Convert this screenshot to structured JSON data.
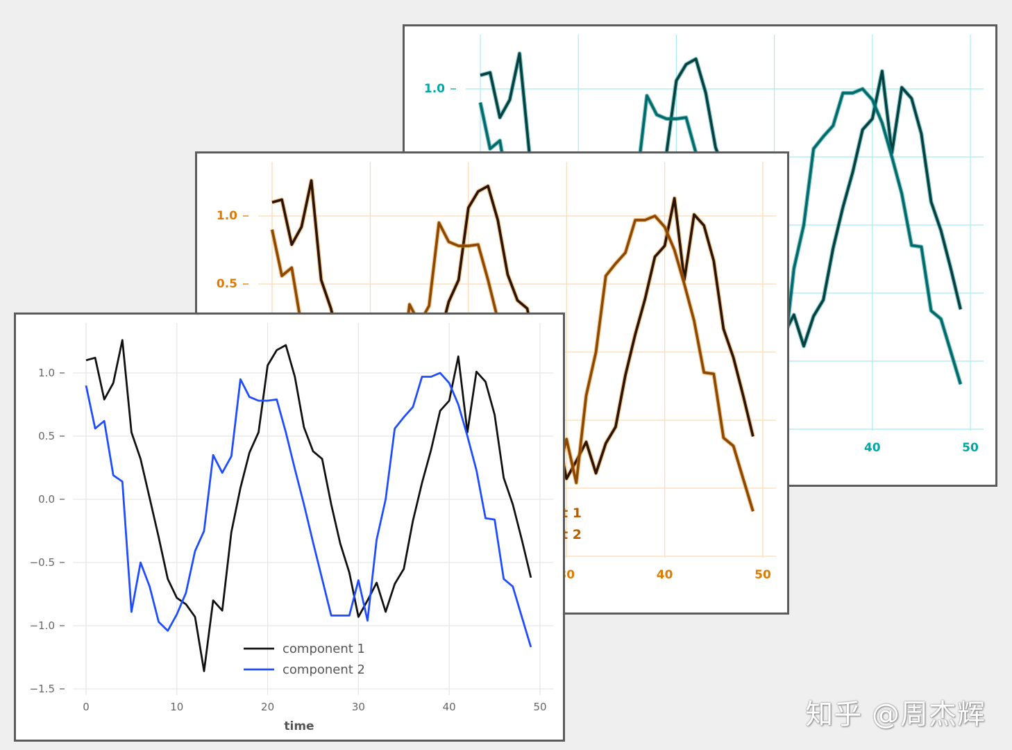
{
  "chart_data": [
    {
      "type": "line",
      "layer": "back",
      "palette": {
        "grid": "#a9ecec",
        "tick_text": "#00a7a7",
        "series": [
          "#063f3f",
          "#006a6a"
        ],
        "glow": [
          "#0a8a8a",
          "#0a8a8a"
        ]
      },
      "x_grid": [
        0,
        10,
        20,
        30,
        40,
        50
      ],
      "y_grid": [
        -1.5,
        -1.0,
        -0.5,
        0.0,
        0.5,
        1.0
      ],
      "x_tick_labels": [
        "40",
        "50"
      ],
      "y_tick_labels": [
        "1.0"
      ],
      "xlim": [
        0,
        50
      ],
      "ylim": [
        -1.5,
        1.3
      ],
      "grid": true,
      "x": [
        0,
        1,
        2,
        3,
        4,
        5,
        6,
        7,
        8,
        9,
        10,
        11,
        12,
        13,
        14,
        15,
        16,
        17,
        18,
        19,
        20,
        21,
        22,
        23,
        24,
        25,
        26,
        27,
        28,
        29,
        30,
        31,
        32,
        33,
        34,
        35,
        36,
        37,
        38,
        39,
        40,
        41,
        42,
        43,
        44,
        45,
        46,
        47,
        48,
        49
      ],
      "series": [
        {
          "values": [
            1.1,
            1.12,
            0.79,
            0.92,
            1.26,
            0.53,
            0.32,
            0.01,
            -0.3,
            -0.63,
            -0.78,
            -0.83,
            -0.93,
            -1.36,
            -0.8,
            -0.88,
            -0.26,
            0.09,
            0.37,
            0.53,
            1.06,
            1.18,
            1.22,
            0.97,
            0.57,
            0.38,
            0.32,
            -0.04,
            -0.35,
            -0.58,
            -0.93,
            -0.8,
            -0.66,
            -0.89,
            -0.67,
            -0.55,
            -0.17,
            0.13,
            0.39,
            0.7,
            0.78,
            1.13,
            0.53,
            1.01,
            0.93,
            0.67,
            0.17,
            -0.04,
            -0.32,
            -0.62
          ]
        },
        {
          "values": [
            0.9,
            0.56,
            0.62,
            0.19,
            0.14,
            -0.89,
            -0.5,
            -0.69,
            -0.97,
            -1.04,
            -0.91,
            -0.74,
            -0.41,
            -0.25,
            0.35,
            0.21,
            0.34,
            0.95,
            0.81,
            0.78,
            0.78,
            0.79,
            0.53,
            0.24,
            -0.04,
            -0.34,
            -0.63,
            -0.92,
            -0.92,
            -0.92,
            -0.64,
            -0.96,
            -0.32,
            0.0,
            0.56,
            0.65,
            0.73,
            0.97,
            0.97,
            1.0,
            0.92,
            0.75,
            0.5,
            0.23,
            -0.15,
            -0.16,
            -0.63,
            -0.69,
            -0.93,
            -1.17
          ]
        }
      ]
    },
    {
      "type": "line",
      "layer": "middle",
      "palette": {
        "grid": "#ffd9b0",
        "tick_text": "#e07a00",
        "series": [
          "#2a1300",
          "#8a4800"
        ],
        "glow": [
          "#e08a20",
          "#e08a20"
        ],
        "legend_text": "#b35f00"
      },
      "x_grid": [
        0,
        10,
        20,
        30,
        40,
        50
      ],
      "y_grid": [
        -1.5,
        -1.0,
        -0.5,
        0.0,
        0.5,
        1.0
      ],
      "x_tick_labels": [
        "30",
        "40",
        "50"
      ],
      "y_tick_labels": [
        "1.0",
        "0.5"
      ],
      "xlim": [
        0,
        50
      ],
      "ylim": [
        -1.5,
        1.3
      ],
      "grid": true,
      "legend": {
        "placement": "lower-center",
        "entries": [
          "component 1",
          "component 2"
        ]
      },
      "x": [
        0,
        1,
        2,
        3,
        4,
        5,
        6,
        7,
        8,
        9,
        10,
        11,
        12,
        13,
        14,
        15,
        16,
        17,
        18,
        19,
        20,
        21,
        22,
        23,
        24,
        25,
        26,
        27,
        28,
        29,
        30,
        31,
        32,
        33,
        34,
        35,
        36,
        37,
        38,
        39,
        40,
        41,
        42,
        43,
        44,
        45,
        46,
        47,
        48,
        49
      ],
      "series": [
        {
          "values": [
            1.1,
            1.12,
            0.79,
            0.92,
            1.26,
            0.53,
            0.32,
            0.01,
            -0.3,
            -0.63,
            -0.78,
            -0.83,
            -0.93,
            -1.36,
            -0.8,
            -0.88,
            -0.26,
            0.09,
            0.37,
            0.53,
            1.06,
            1.18,
            1.22,
            0.97,
            0.57,
            0.38,
            0.32,
            -0.04,
            -0.35,
            -0.58,
            -0.93,
            -0.8,
            -0.66,
            -0.89,
            -0.67,
            -0.55,
            -0.17,
            0.13,
            0.39,
            0.7,
            0.78,
            1.13,
            0.53,
            1.01,
            0.93,
            0.67,
            0.17,
            -0.04,
            -0.32,
            -0.62
          ]
        },
        {
          "values": [
            0.9,
            0.56,
            0.62,
            0.19,
            0.14,
            -0.89,
            -0.5,
            -0.69,
            -0.97,
            -1.04,
            -0.91,
            -0.74,
            -0.41,
            -0.25,
            0.35,
            0.21,
            0.34,
            0.95,
            0.81,
            0.78,
            0.78,
            0.79,
            0.53,
            0.24,
            -0.04,
            -0.34,
            -0.63,
            -0.92,
            -0.92,
            -0.92,
            -0.64,
            -0.96,
            -0.32,
            0.0,
            0.56,
            0.65,
            0.73,
            0.97,
            0.97,
            1.0,
            0.92,
            0.75,
            0.5,
            0.23,
            -0.15,
            -0.16,
            -0.63,
            -0.69,
            -0.93,
            -1.17
          ]
        }
      ]
    },
    {
      "type": "line",
      "layer": "front",
      "palette": {
        "grid": "#e6e6e6",
        "tick_text": "#666666",
        "series": [
          "#111111",
          "#1f4cff"
        ],
        "legend_text": "#555555"
      },
      "x_grid": [
        0,
        10,
        20,
        30,
        40,
        50
      ],
      "y_grid": [
        -1.5,
        -1.0,
        -0.5,
        0.0,
        0.5,
        1.0
      ],
      "x_tick_labels": [
        "0",
        "10",
        "20",
        "30",
        "40",
        "50"
      ],
      "y_tick_labels": [
        "−1.5",
        "−1.0",
        "−0.5",
        "0.0",
        "0.5",
        "1.0"
      ],
      "xlabel": "time",
      "ylabel": "",
      "xlim": [
        0,
        50
      ],
      "ylim": [
        -1.5,
        1.3
      ],
      "grid": true,
      "legend": {
        "placement": "lower-center",
        "entries": [
          "component 1",
          "component 2"
        ]
      },
      "x": [
        0,
        1,
        2,
        3,
        4,
        5,
        6,
        7,
        8,
        9,
        10,
        11,
        12,
        13,
        14,
        15,
        16,
        17,
        18,
        19,
        20,
        21,
        22,
        23,
        24,
        25,
        26,
        27,
        28,
        29,
        30,
        31,
        32,
        33,
        34,
        35,
        36,
        37,
        38,
        39,
        40,
        41,
        42,
        43,
        44,
        45,
        46,
        47,
        48,
        49
      ],
      "series": [
        {
          "name": "component 1",
          "values": [
            1.1,
            1.12,
            0.79,
            0.92,
            1.26,
            0.53,
            0.32,
            0.01,
            -0.3,
            -0.63,
            -0.78,
            -0.83,
            -0.93,
            -1.36,
            -0.8,
            -0.88,
            -0.26,
            0.09,
            0.37,
            0.53,
            1.06,
            1.18,
            1.22,
            0.97,
            0.57,
            0.38,
            0.32,
            -0.04,
            -0.35,
            -0.58,
            -0.93,
            -0.8,
            -0.66,
            -0.89,
            -0.67,
            -0.55,
            -0.17,
            0.13,
            0.39,
            0.7,
            0.78,
            1.13,
            0.53,
            1.01,
            0.93,
            0.67,
            0.17,
            -0.04,
            -0.32,
            -0.62
          ]
        },
        {
          "name": "component 2",
          "values": [
            0.9,
            0.56,
            0.62,
            0.19,
            0.14,
            -0.89,
            -0.5,
            -0.69,
            -0.97,
            -1.04,
            -0.91,
            -0.74,
            -0.41,
            -0.25,
            0.35,
            0.21,
            0.34,
            0.95,
            0.81,
            0.78,
            0.78,
            0.79,
            0.53,
            0.24,
            -0.04,
            -0.34,
            -0.63,
            -0.92,
            -0.92,
            -0.92,
            -0.64,
            -0.96,
            -0.32,
            0.0,
            0.56,
            0.65,
            0.73,
            0.97,
            0.97,
            1.0,
            0.92,
            0.75,
            0.5,
            0.23,
            -0.15,
            -0.16,
            -0.63,
            -0.69,
            -0.93,
            -1.17
          ]
        }
      ]
    }
  ],
  "watermark": "知乎 @周杰辉"
}
